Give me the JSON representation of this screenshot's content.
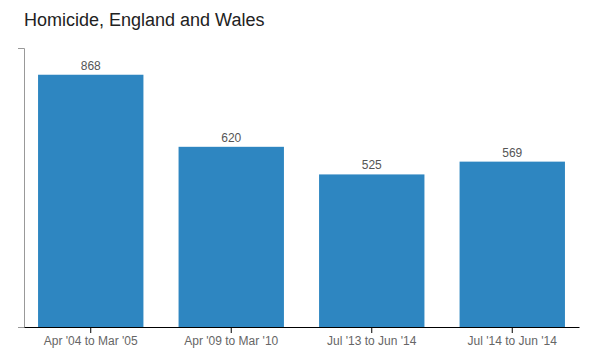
{
  "chart_data": {
    "type": "bar",
    "title": "Homicide, England and Wales",
    "categories": [
      "Apr '04 to Mar '05",
      "Apr '09 to Mar '10",
      "Jul '13 to Jun '14",
      "Jul '14 to Jun '14"
    ],
    "values": [
      868,
      620,
      525,
      569
    ],
    "color": "#2E86C1",
    "ylim": [
      0,
      960
    ],
    "grid": false,
    "data_labels": true,
    "tick_labels": "x"
  }
}
